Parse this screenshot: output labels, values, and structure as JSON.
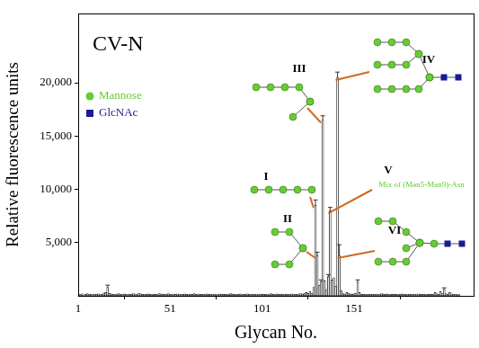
{
  "chart_data": {
    "type": "bar",
    "title": "CV-N",
    "x_label": "Glycan No.",
    "y_label": "Relative fluorescence units",
    "color": "#ffffff",
    "grid": false,
    "legend": "upper left",
    "xlim": [
      1,
      216
    ],
    "xticks": [
      1,
      51,
      101,
      151
    ],
    "ylim": [
      0,
      26500
    ],
    "yticks": [
      5000,
      10000,
      15000,
      20000
    ],
    "symbols": [
      {
        "name": "Mannose",
        "color": "#66cc33",
        "marker": "circle"
      },
      {
        "name": "GlcNAc",
        "color": "#1a1a99",
        "marker": "square"
      }
    ],
    "annotations": [
      {
        "text": "I",
        "glycan": 130
      },
      {
        "text": "II",
        "glycan": 131
      },
      {
        "text": "III",
        "glycan": 134
      },
      {
        "text": "IV",
        "glycan": 142
      },
      {
        "text": "V",
        "glycan": 138
      },
      {
        "text": "Mix of (Man5-Man9)-Asn",
        "glycan": 138,
        "color": "#66cc33"
      },
      {
        "text": "VI",
        "glycan": 143
      }
    ],
    "x": [
      1,
      2,
      3,
      4,
      5,
      6,
      7,
      8,
      9,
      10,
      11,
      12,
      13,
      14,
      15,
      16,
      17,
      18,
      19,
      20,
      21,
      22,
      23,
      24,
      25,
      26,
      27,
      28,
      29,
      30,
      31,
      32,
      33,
      34,
      35,
      36,
      37,
      38,
      39,
      40,
      41,
      42,
      43,
      44,
      45,
      46,
      47,
      48,
      49,
      50,
      51,
      52,
      53,
      54,
      55,
      56,
      57,
      58,
      59,
      60,
      61,
      62,
      63,
      64,
      65,
      66,
      67,
      68,
      69,
      70,
      71,
      72,
      73,
      74,
      75,
      76,
      77,
      78,
      79,
      80,
      81,
      82,
      83,
      84,
      85,
      86,
      87,
      88,
      89,
      90,
      91,
      92,
      93,
      94,
      95,
      96,
      97,
      98,
      99,
      100,
      101,
      102,
      103,
      104,
      105,
      106,
      107,
      108,
      109,
      110,
      111,
      112,
      113,
      114,
      115,
      116,
      117,
      118,
      119,
      120,
      121,
      122,
      123,
      124,
      125,
      126,
      127,
      128,
      129,
      130,
      131,
      132,
      133,
      134,
      135,
      136,
      137,
      138,
      139,
      140,
      141,
      142,
      143,
      144,
      145,
      146,
      147,
      148,
      149,
      150,
      151,
      152,
      153,
      154,
      155,
      156,
      157,
      158,
      159,
      160,
      161,
      162,
      163,
      164,
      165,
      166,
      167,
      168,
      169,
      170,
      171,
      172,
      173,
      174,
      175,
      176,
      177,
      178,
      179,
      180,
      181,
      182,
      183,
      184,
      185,
      186,
      187,
      188,
      189,
      190,
      191,
      192,
      193,
      194,
      195,
      196,
      197,
      198,
      199,
      200,
      201,
      202,
      203,
      204,
      205,
      206,
      207,
      208
    ],
    "values": [
      150,
      120,
      180,
      100,
      140,
      200,
      130,
      160,
      110,
      170,
      140,
      190,
      120,
      150,
      260,
      300,
      800,
      220,
      180,
      140,
      130,
      160,
      200,
      150,
      120,
      180,
      140,
      110,
      170,
      150,
      200,
      160,
      130,
      250,
      180,
      140,
      120,
      160,
      190,
      150,
      130,
      170,
      150,
      120,
      210,
      180,
      140,
      160,
      130,
      200,
      150,
      120,
      170,
      140,
      190,
      160,
      130,
      150,
      180,
      140,
      120,
      160,
      140,
      200,
      150,
      130,
      170,
      140,
      160,
      120,
      180,
      150,
      140,
      130,
      170,
      160,
      120,
      190,
      150,
      140,
      160,
      130,
      150,
      200,
      140,
      170,
      120,
      150,
      180,
      130,
      140,
      160,
      190,
      150,
      120,
      170,
      140,
      160,
      130,
      180,
      150,
      140,
      170,
      120,
      160,
      200,
      150,
      130,
      180,
      140,
      160,
      150,
      130,
      170,
      140,
      120,
      190,
      160,
      150,
      140,
      180,
      200,
      160,
      250,
      300,
      220,
      400,
      250,
      800,
      8500,
      3800,
      1000,
      1300,
      16500,
      1400,
      600,
      1800,
      8000,
      1500,
      1700,
      900,
      20500,
      3800,
      500,
      200,
      160,
      300,
      250,
      180,
      150,
      200,
      250,
      1300,
      300,
      150,
      140,
      170,
      130,
      160,
      150,
      140,
      170,
      150,
      130,
      160,
      200,
      150,
      140,
      180,
      130,
      160,
      150,
      140,
      170,
      120,
      150,
      190,
      160,
      140,
      130,
      150,
      170,
      140,
      160,
      130,
      180,
      150,
      140,
      160,
      120,
      170,
      150,
      140,
      160,
      300,
      200,
      150,
      400,
      250,
      600,
      200,
      150,
      300,
      180,
      140,
      160,
      130,
      120
    ],
    "errors": [
      null,
      null,
      null,
      null,
      null,
      null,
      null,
      null,
      null,
      null,
      null,
      null,
      null,
      null,
      null,
      null,
      200,
      null,
      null,
      null,
      null,
      null,
      null,
      null,
      null,
      null,
      null,
      null,
      null,
      null,
      null,
      null,
      null,
      null,
      null,
      null,
      null,
      null,
      null,
      null,
      null,
      null,
      null,
      null,
      null,
      null,
      null,
      null,
      null,
      null,
      null,
      null,
      null,
      null,
      null,
      null,
      null,
      null,
      null,
      null,
      null,
      null,
      null,
      null,
      null,
      null,
      null,
      null,
      null,
      null,
      null,
      null,
      null,
      null,
      null,
      null,
      null,
      null,
      null,
      null,
      null,
      null,
      null,
      null,
      null,
      null,
      null,
      null,
      null,
      null,
      null,
      null,
      null,
      null,
      null,
      null,
      null,
      null,
      null,
      null,
      null,
      null,
      null,
      null,
      null,
      null,
      null,
      null,
      null,
      null,
      null,
      null,
      null,
      null,
      null,
      null,
      null,
      null,
      null,
      null,
      null,
      null,
      null,
      null,
      null,
      null,
      null,
      null,
      null,
      500,
      300,
      null,
      200,
      400,
      null,
      null,
      200,
      300,
      null,
      null,
      null,
      500,
      1000,
      null,
      null,
      null,
      null,
      null,
      null,
      null,
      null,
      null,
      200,
      null,
      null,
      null,
      null,
      null,
      null,
      null,
      null,
      null,
      null,
      null,
      null,
      null,
      null,
      null,
      null,
      null,
      null,
      null,
      null,
      null,
      null,
      null,
      null,
      null,
      null,
      null,
      null,
      null,
      null,
      null,
      null,
      null,
      null,
      null,
      null,
      null,
      null,
      null,
      null,
      null,
      null,
      null,
      null,
      null,
      null,
      150,
      null,
      null,
      null,
      null,
      null,
      null,
      null,
      null
    ]
  }
}
